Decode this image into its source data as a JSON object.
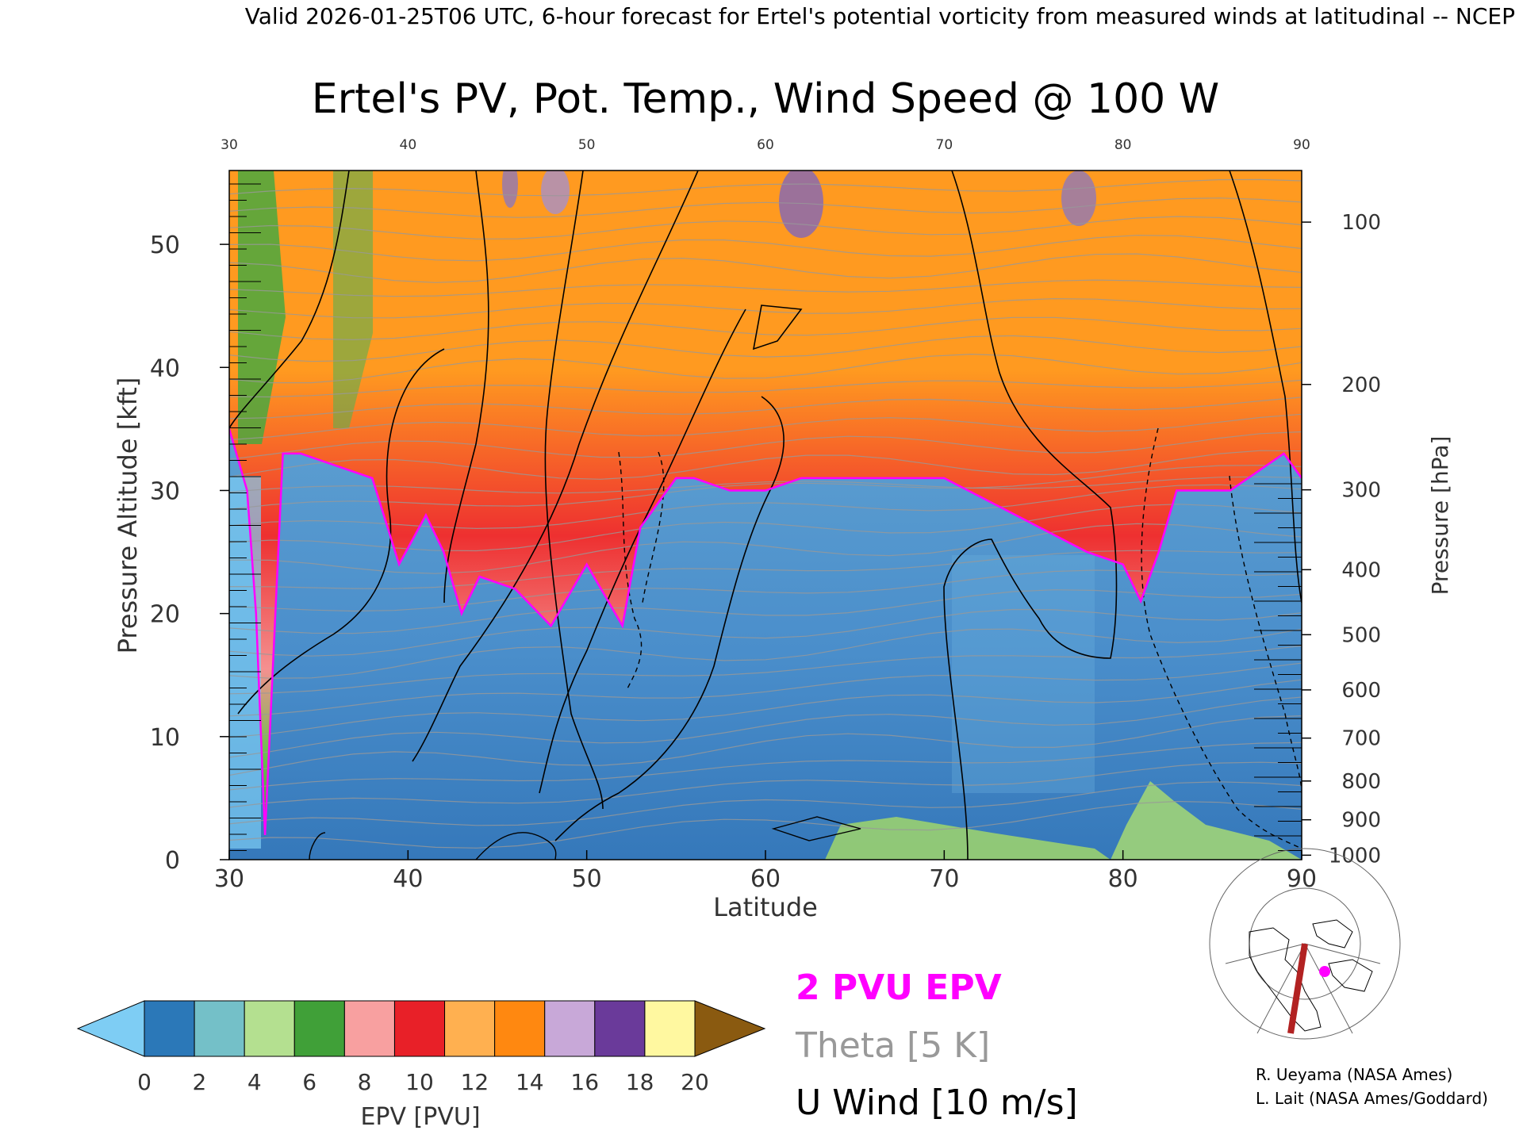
{
  "header": {
    "valid_line": "Valid 2026-01-25T06 UTC, 6-hour forecast for Ertel's potential vorticity from measured winds at latitudinal -- NCEP"
  },
  "chart_data": {
    "type": "heatmap",
    "title": "Ertel's PV, Pot. Temp., Wind Speed @ 100 W",
    "xlabel": "Latitude",
    "ylabel": "Pressure Altitude [kft]",
    "ylabel_right": "Pressure [hPa]",
    "xlim": [
      30,
      90
    ],
    "ylim": [
      0,
      56
    ],
    "x_ticks": [
      30,
      40,
      50,
      60,
      70,
      80,
      90
    ],
    "x_tick_labels": [
      "30",
      "40",
      "50",
      "60",
      "70",
      "80",
      "90"
    ],
    "y_ticks": [
      0,
      10,
      20,
      30,
      40,
      50
    ],
    "y_tick_labels": [
      "0",
      "10",
      "20",
      "30",
      "40",
      "50"
    ],
    "pressure_ticks": [
      {
        "hpa": 1000,
        "label": "1000"
      },
      {
        "hpa": 900,
        "label": "900"
      },
      {
        "hpa": 800,
        "label": "800"
      },
      {
        "hpa": 700,
        "label": "700"
      },
      {
        "hpa": 600,
        "label": "600"
      },
      {
        "hpa": 500,
        "label": "500"
      },
      {
        "hpa": 400,
        "label": "400"
      },
      {
        "hpa": 300,
        "label": "300"
      },
      {
        "hpa": 200,
        "label": "200"
      },
      {
        "hpa": 100,
        "label": "100"
      }
    ],
    "tropopause_2pvu_kft": [
      {
        "lat": 30,
        "kft": 35
      },
      {
        "lat": 31,
        "kft": 30
      },
      {
        "lat": 31.5,
        "kft": 20
      },
      {
        "lat": 32,
        "kft": 2
      },
      {
        "lat": 33,
        "kft": 33
      },
      {
        "lat": 34,
        "kft": 33
      },
      {
        "lat": 36,
        "kft": 32
      },
      {
        "lat": 38,
        "kft": 31
      },
      {
        "lat": 39.5,
        "kft": 24
      },
      {
        "lat": 41,
        "kft": 28
      },
      {
        "lat": 42,
        "kft": 25
      },
      {
        "lat": 43,
        "kft": 20
      },
      {
        "lat": 44,
        "kft": 23
      },
      {
        "lat": 46,
        "kft": 22
      },
      {
        "lat": 48,
        "kft": 19
      },
      {
        "lat": 50,
        "kft": 24
      },
      {
        "lat": 52,
        "kft": 19
      },
      {
        "lat": 53,
        "kft": 27
      },
      {
        "lat": 55,
        "kft": 31
      },
      {
        "lat": 56,
        "kft": 31
      },
      {
        "lat": 58,
        "kft": 30
      },
      {
        "lat": 60,
        "kft": 30
      },
      {
        "lat": 62,
        "kft": 31
      },
      {
        "lat": 65,
        "kft": 31
      },
      {
        "lat": 70,
        "kft": 31
      },
      {
        "lat": 74,
        "kft": 28
      },
      {
        "lat": 78,
        "kft": 25
      },
      {
        "lat": 80,
        "kft": 24
      },
      {
        "lat": 81,
        "kft": 21
      },
      {
        "lat": 82,
        "kft": 25
      },
      {
        "lat": 83,
        "kft": 30
      },
      {
        "lat": 86,
        "kft": 30
      },
      {
        "lat": 89,
        "kft": 33
      },
      {
        "lat": 90,
        "kft": 31
      }
    ],
    "legend": {
      "entries": [
        "2 PVU EPV",
        "Theta [5 K]",
        "U Wind [10 m/s]"
      ],
      "colors": [
        "#ff00ff",
        "#999999",
        "#000000"
      ]
    },
    "colorbar": {
      "label": "EPV [PVU]",
      "tick_labels": [
        "0",
        "2",
        "4",
        "6",
        "8",
        "10",
        "12",
        "14",
        "16",
        "18",
        "20"
      ],
      "colors": [
        "#2b78b8",
        "#74c0c8",
        "#b4e090",
        "#40a038",
        "#f8a0a0",
        "#e82028",
        "#ffb050",
        "#ff8810",
        "#c8a8d8",
        "#6a3a9a",
        "#fff8a0"
      ],
      "under_color": "#7ecdf4",
      "over_color": "#8a5a10"
    }
  },
  "map_inset": {
    "marker_color": "#ff00ff",
    "transect_color": "#b22222"
  },
  "credits": [
    "R. Ueyama (NASA Ames)",
    "L. Lait (NASA Ames/Goddard)"
  ]
}
